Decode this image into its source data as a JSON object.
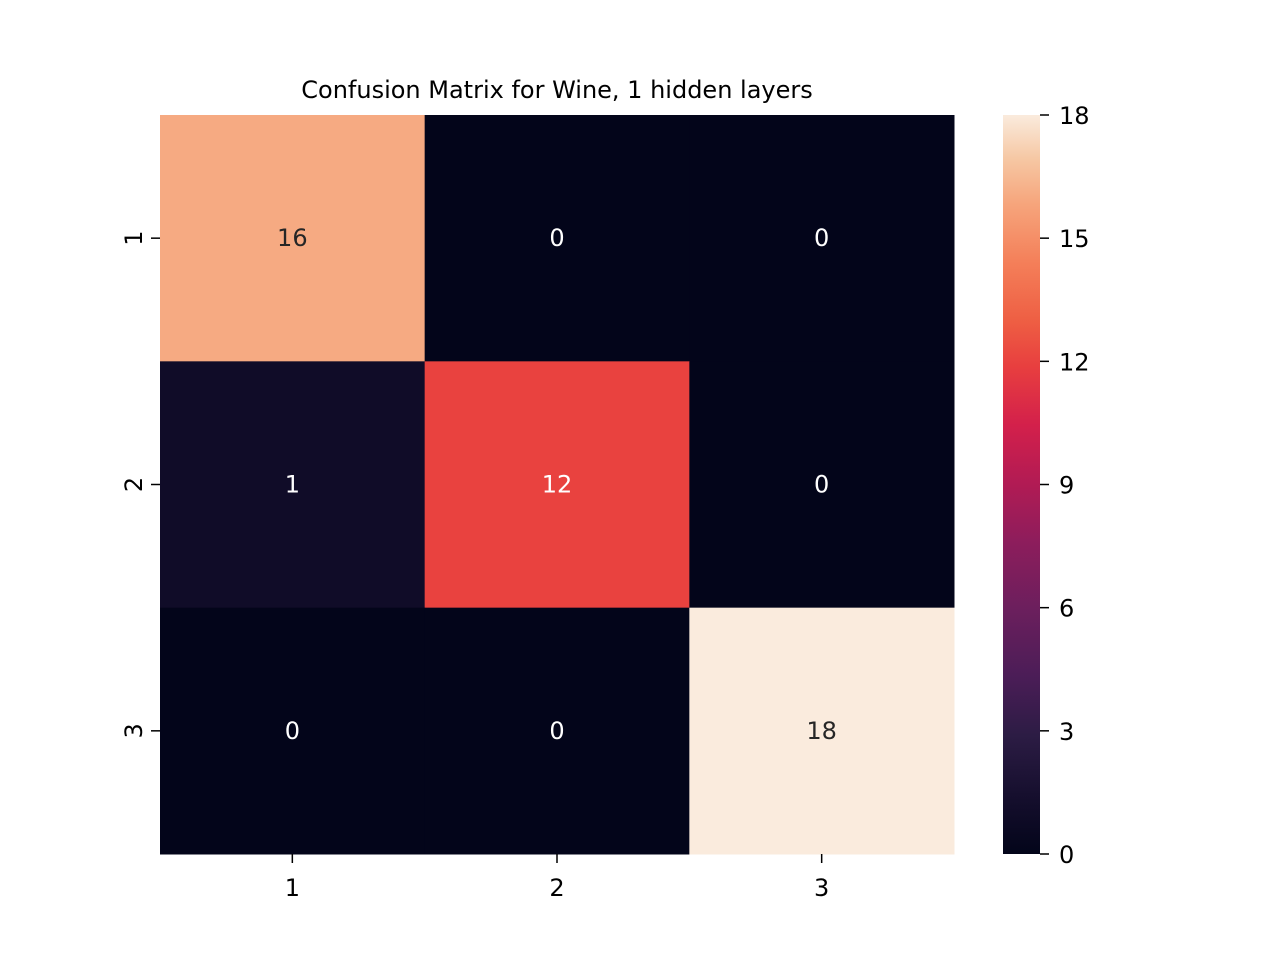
{
  "chart_data": {
    "type": "heatmap",
    "title": "Confusion Matrix for Wine, 1 hidden layers",
    "xlabel": "",
    "ylabel": "",
    "x_categories": [
      "1",
      "2",
      "3"
    ],
    "y_categories": [
      "1",
      "2",
      "3"
    ],
    "values": [
      [
        16,
        0,
        0
      ],
      [
        1,
        12,
        0
      ],
      [
        0,
        0,
        18
      ]
    ],
    "colorbar": {
      "min": 0,
      "max": 18,
      "ticks": [
        0,
        3,
        6,
        9,
        12,
        15,
        18
      ],
      "colormap": "rocket"
    },
    "annotation_colors": {
      "light_text": "#ffffff",
      "dark_text": "#262626"
    },
    "grid": false
  }
}
